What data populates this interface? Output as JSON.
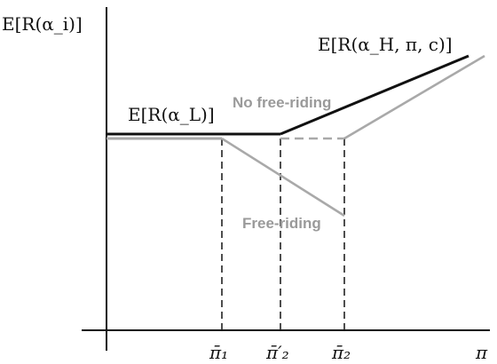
{
  "y_axis_label": "E[R(α_i)]",
  "x_axis_label": "π",
  "labels": {
    "low": "E[R(α_L)]",
    "high": "E[R(α_H, π, c)]",
    "no_free_riding": "No free-riding",
    "free_riding": "Free-riding"
  },
  "x_ticks": [
    "π̄₁",
    "π̄′₂",
    "π̄₂"
  ],
  "colors": {
    "black_line": "#111111",
    "grey_line": "#a9a9a9",
    "dashed_line": "#222222",
    "grey_text": "#9a9a9a"
  }
}
